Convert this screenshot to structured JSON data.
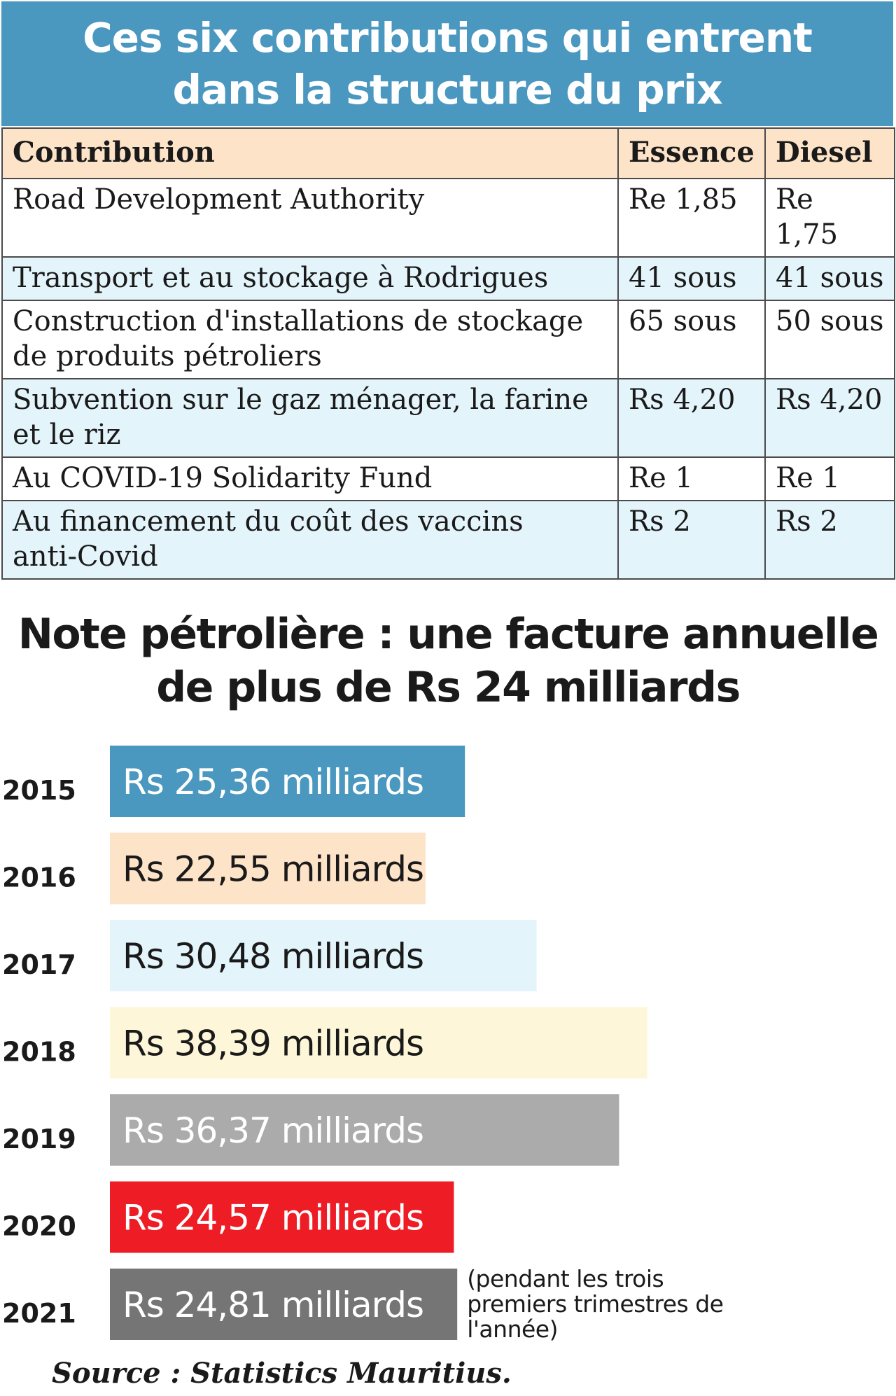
{
  "table": {
    "title_line1": "Ces six contributions qui entrent",
    "title_line2": "dans la structure du prix",
    "headers": [
      "Contribution",
      "Essence",
      "Diesel"
    ],
    "rows": [
      {
        "contribution_line1": "Road Development Authority",
        "contribution_line2": "",
        "essence": "Re 1,85",
        "diesel": "Re 1,75"
      },
      {
        "contribution_line1": "Transport et au stockage à Rodrigues",
        "contribution_line2": "",
        "essence": "41 sous",
        "diesel": "41 sous"
      },
      {
        "contribution_line1": "Construction d'installations de stockage",
        "contribution_line2": "de produits pétroliers",
        "essence": "65 sous",
        "diesel": "50 sous"
      },
      {
        "contribution_line1": "Subvention sur le gaz ménager, la farine",
        "contribution_line2": "et le riz",
        "essence": "Rs 4,20",
        "diesel": "Rs 4,20"
      },
      {
        "contribution_line1": "Au COVID-19 Solidarity Fund",
        "contribution_line2": "",
        "essence": "Re 1",
        "diesel": "Re 1"
      },
      {
        "contribution_line1": "Au financement du coût des vaccins",
        "contribution_line2": "anti-Covid",
        "essence": "Rs 2",
        "diesel": "Rs 2"
      }
    ],
    "header_bg": "#4a97bf",
    "header_row_bg": "#fde3c8",
    "stripe_bg": "#e4f4fb"
  },
  "chart_data": {
    "type": "bar",
    "orientation": "horizontal",
    "title_line1": "Note pétrolière : une facture annuelle",
    "title_line2": "de plus de Rs 24 milliards",
    "unit": "milliards Rs",
    "categories": [
      "2015",
      "2016",
      "2017",
      "2018",
      "2019",
      "2020",
      "2021"
    ],
    "values": [
      25.36,
      22.55,
      30.48,
      38.39,
      36.37,
      24.57,
      24.81
    ],
    "labels": [
      "Rs 25,36 milliards",
      "Rs 22,55 milliards",
      "Rs 30,48 milliards",
      "Rs 38,39 milliards",
      "Rs 36,37 milliards",
      "Rs 24,57 milliards",
      "Rs 24,81 milliards"
    ],
    "colors": [
      "#4a97bf",
      "#fde3c8",
      "#e4f4fb",
      "#fdf6d8",
      "#ababab",
      "#ee1c24",
      "#757575"
    ],
    "label_colors": [
      "#ffffff",
      "#1a1a1a",
      "#1a1a1a",
      "#1a1a1a",
      "#ffffff",
      "#ffffff",
      "#ffffff"
    ],
    "annotation_lines": [
      "(pendant les trois",
      "premiers trimestres de",
      "l'année)"
    ],
    "xlim": [
      0,
      50
    ]
  },
  "source": "Source : Statistics Mauritius."
}
